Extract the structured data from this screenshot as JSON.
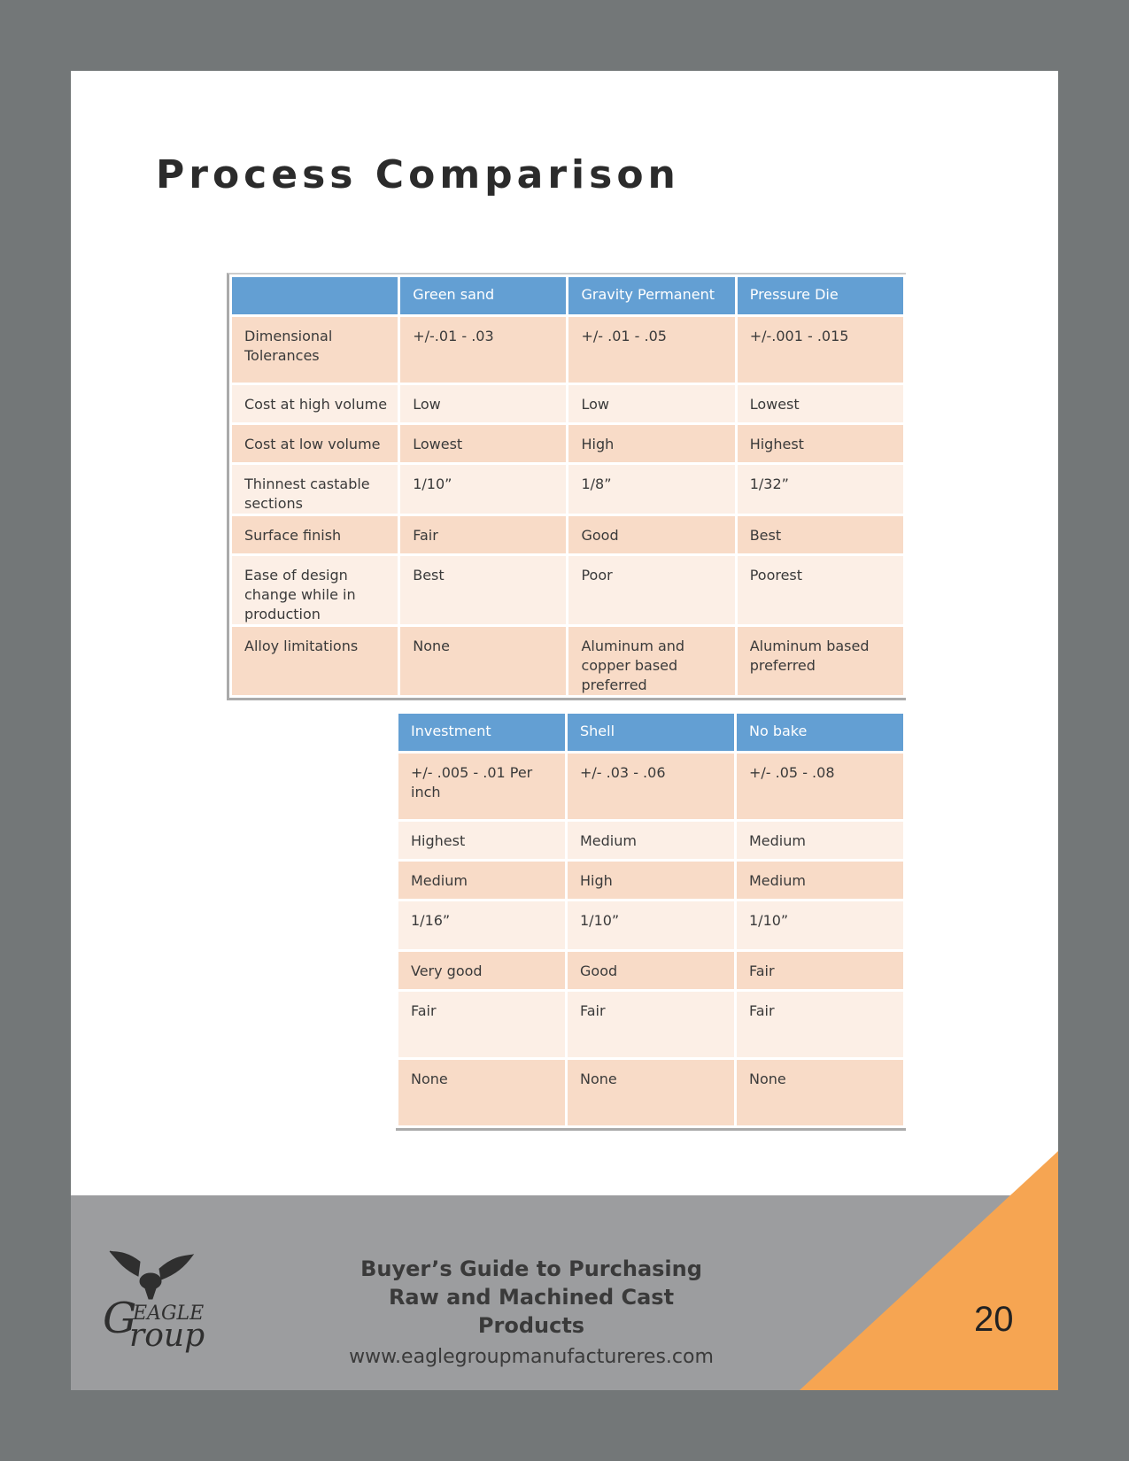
{
  "title": "Process Comparison",
  "table_a": {
    "headers": [
      "",
      "Green sand",
      "Gravity Permanent",
      "Pressure Die"
    ],
    "rows": [
      [
        "Dimensional Tolerances",
        "+/-.01 - .03",
        "+/- .01 - .05",
        "+/-.001 - .015"
      ],
      [
        "Cost at high volume",
        "Low",
        "Low",
        "Lowest"
      ],
      [
        "Cost at low volume",
        "Lowest",
        "High",
        "Highest"
      ],
      [
        "Thinnest castable sections",
        "1/10”",
        "1/8”",
        "1/32”"
      ],
      [
        "Surface finish",
        "Fair",
        "Good",
        "Best"
      ],
      [
        "Ease of design change while in production",
        "Best",
        "Poor",
        "Poorest"
      ],
      [
        "Alloy limitations",
        "None",
        "Aluminum and copper based preferred",
        "Aluminum based preferred"
      ]
    ]
  },
  "table_b": {
    "headers": [
      "Investment",
      "Shell",
      "No bake"
    ],
    "rows": [
      [
        "+/- .005 - .01 Per inch",
        "+/- .03 - .06",
        "+/- .05 - .08"
      ],
      [
        "Highest",
        "Medium",
        "Medium"
      ],
      [
        "Medium",
        "High",
        "Medium"
      ],
      [
        "1/16”",
        "1/10”",
        "1/10”"
      ],
      [
        "Very good",
        "Good",
        "Fair"
      ],
      [
        "Fair",
        "Fair",
        "Fair"
      ],
      [
        "None",
        "None",
        "None"
      ]
    ]
  },
  "footer": {
    "logo_text": "EAGLE Group",
    "book_title_line1": "Buyer’s Guide to Purchasing",
    "book_title_line2": "Raw and Machined Cast Products",
    "url": "www.eaglegroupmanufactureres.com",
    "page_number": "20"
  },
  "colors": {
    "header_blue": "#639fd3",
    "row_dark": "#f8dbc7",
    "row_light": "#fcefe6",
    "footer_gray": "#9c9d9f",
    "accent_orange": "#f6a552"
  }
}
